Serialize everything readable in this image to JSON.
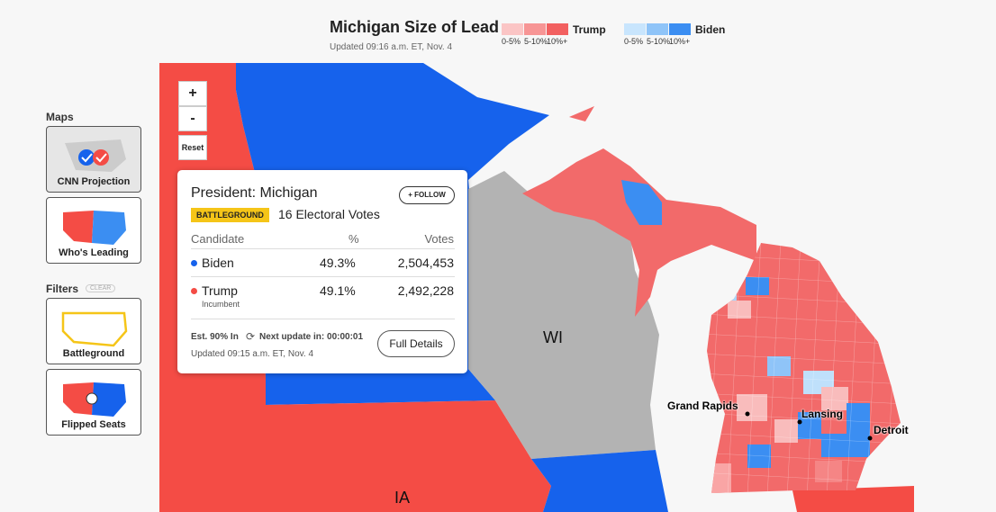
{
  "header": {
    "title": "Michigan Size of Lead",
    "updated": "Updated 09:16 a.m. ET, Nov. 4"
  },
  "legend": {
    "trump": {
      "name": "Trump",
      "ranges": [
        "0-5%",
        "5-10%",
        "10%+"
      ]
    },
    "biden": {
      "name": "Biden",
      "ranges": [
        "0-5%",
        "5-10%",
        "10%+"
      ]
    }
  },
  "sidebar": {
    "maps_title": "Maps",
    "maps": [
      "CNN Projection",
      "Who's Leading"
    ],
    "filters_title": "Filters",
    "clear": "CLEAR",
    "filters": [
      "Battleground",
      "Flipped Seats"
    ]
  },
  "zoom": {
    "in": "+",
    "out": "-",
    "reset": "Reset"
  },
  "popup": {
    "title": "President: Michigan",
    "follow": "+ FOLLOW",
    "badge": "BATTLEGROUND",
    "electoral": "16 Electoral Votes",
    "headers": [
      "Candidate",
      "%",
      "Votes"
    ],
    "rows": [
      {
        "name": "Biden",
        "pct": "49.3%",
        "votes": "2,504,453"
      },
      {
        "name": "Trump",
        "pct": "49.1%",
        "votes": "2,492,228",
        "note": "Incumbent"
      }
    ],
    "est": "Est. 90% In",
    "next": "Next update in: 00:00:01",
    "details": "Full Details",
    "updated": "Updated 09:15 a.m. ET, Nov. 4"
  },
  "map": {
    "states": [
      "WI",
      "IA"
    ],
    "cities": [
      "Grand Rapids",
      "Lansing",
      "Detroit"
    ]
  }
}
